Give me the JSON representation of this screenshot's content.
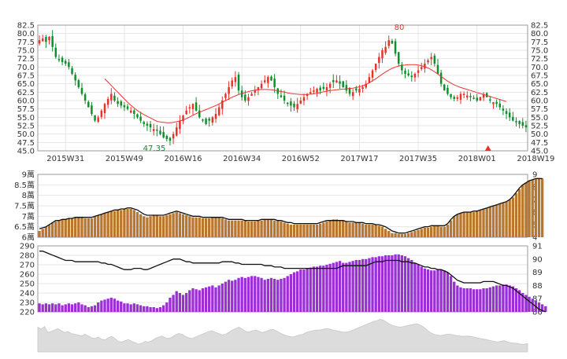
{
  "colors": {
    "up": "#e8322a",
    "down": "#0e8f2c",
    "ma_line": "#ee3333",
    "volume_bar": "#b8772c",
    "volume_line": "#111111",
    "holders_bar": "#9b2fd6",
    "holders_line": "#111111",
    "grid": "#e5e5e5",
    "axis": "#9a9a9a",
    "overview_fill": "#dcdcdc",
    "marker": "#e8322a"
  },
  "chart_data": [
    {
      "type": "candlestick",
      "title": "",
      "x_ticks": [
        "2015W31",
        "2015W49",
        "2016W16",
        "2016W34",
        "2016W52",
        "2017W17",
        "2017W35",
        "2018W01",
        "2018W19"
      ],
      "x_tick_index": [
        8,
        26,
        44,
        62,
        80,
        98,
        116,
        134,
        152
      ],
      "y_ticks": [
        "45.0",
        "47.5",
        "50.0",
        "52.5",
        "55.0",
        "57.5",
        "60.0",
        "62.5",
        "65.0",
        "67.5",
        "70.0",
        "72.5",
        "75.0",
        "77.5",
        "80.0",
        "82.5"
      ],
      "ylim": [
        45,
        82.5
      ],
      "annotations": {
        "high": "80",
        "low": "47.35"
      },
      "close_path": [
        78,
        78.5,
        77.5,
        79,
        76,
        73,
        72,
        71.5,
        71,
        70,
        68,
        66,
        64,
        62,
        60,
        58,
        56,
        54,
        55,
        57,
        59,
        60.5,
        62,
        60,
        59,
        58.5,
        58,
        57.5,
        57,
        56,
        55,
        54,
        53,
        52.5,
        52,
        51.5,
        51,
        50,
        49,
        48.5,
        48,
        50,
        52,
        54,
        55.5,
        57,
        58,
        59,
        57,
        55,
        54,
        53,
        54,
        55,
        56,
        58,
        60,
        62,
        64,
        66,
        67,
        63,
        61,
        60,
        61,
        62,
        63,
        64,
        65,
        66,
        67,
        66,
        64,
        62,
        61,
        60,
        59,
        58.5,
        58,
        59,
        60,
        61,
        62,
        62.5,
        63,
        63.5,
        63,
        63.5,
        64,
        65,
        65.5,
        66,
        65,
        64,
        63,
        62,
        62.5,
        63,
        63.5,
        64,
        65,
        67,
        69,
        71,
        73,
        75,
        76,
        78,
        77,
        74,
        71,
        69,
        68,
        67.5,
        67,
        68,
        69,
        70,
        71,
        72,
        73,
        71,
        68,
        65,
        63,
        62,
        61,
        60.5,
        61,
        62,
        62,
        61.5,
        61,
        60.5,
        60,
        61,
        62,
        61,
        60,
        59.5,
        59,
        58,
        57,
        56,
        55,
        54,
        53.5,
        53,
        52.5,
        52
      ],
      "ma_path": [
        null,
        null,
        null,
        null,
        null,
        null,
        null,
        null,
        null,
        null,
        null,
        null,
        null,
        null,
        null,
        null,
        null,
        null,
        null,
        null,
        66.5,
        65.5,
        64.5,
        63.5,
        62.5,
        61.5,
        60.5,
        59.5,
        58.6,
        57.8,
        57.0,
        56.4,
        55.8,
        55.3,
        54.8,
        54.3,
        53.8,
        53.6,
        53.5,
        53.4,
        53.4,
        53.5,
        53.7,
        53.9,
        54.2,
        54.6,
        55.1,
        55.6,
        56.1,
        56.5,
        56.9,
        57.3,
        57.7,
        58.1,
        58.5,
        59.0,
        59.5,
        60.0,
        60.5,
        61.0,
        61.4,
        61.8,
        62.1,
        62.4,
        62.7,
        62.9,
        63.1,
        63.2,
        63.3,
        63.3,
        63.3,
        63.2,
        63.1,
        62.9,
        62.7,
        62.5,
        62.3,
        62.1,
        62.0,
        61.9,
        61.8,
        61.8,
        61.8,
        61.9,
        62.0,
        62.2,
        62.4,
        62.6,
        62.8,
        63.0,
        63.1,
        63.2,
        63.3,
        63.4,
        63.5,
        63.6,
        63.7,
        63.9,
        64.1,
        64.4,
        64.8,
        65.3,
        65.9,
        66.5,
        67.2,
        67.9,
        68.5,
        69.1,
        69.6,
        70.0,
        70.3,
        70.5,
        70.6,
        70.7,
        70.7,
        70.7,
        70.6,
        70.4,
        70.1,
        69.7,
        69.2,
        68.6,
        67.9,
        67.2,
        66.5,
        65.8,
        65.2,
        64.7,
        64.3,
        63.9,
        63.6,
        63.3,
        63.0,
        62.7,
        62.4,
        62.1,
        61.8,
        61.5,
        61.2,
        60.9,
        60.6,
        60.3,
        60.0,
        59.7
      ]
    },
    {
      "type": "bar",
      "title": "",
      "y_ticks_left": [
        "6萬",
        "6.5萬",
        "7萬",
        "7.5萬",
        "8萬",
        "8.5萬",
        "9萬"
      ],
      "y_ticks_right": [
        "4",
        "5",
        "6",
        "7",
        "8",
        "9"
      ],
      "ylim_left": [
        6,
        9
      ],
      "ylim_right": [
        4,
        9
      ],
      "bar_path": [
        6.3,
        6.4,
        6.5,
        6.6,
        6.7,
        6.75,
        6.8,
        6.85,
        6.85,
        6.9,
        6.9,
        6.95,
        6.95,
        6.95,
        6.9,
        6.9,
        6.9,
        7.0,
        7.05,
        7.1,
        7.15,
        7.2,
        7.25,
        7.25,
        7.3,
        7.3,
        7.35,
        7.35,
        7.35,
        7.3,
        7.2,
        7.1,
        7.0,
        6.95,
        7.0,
        7.05,
        7.05,
        7.0,
        7.0,
        7.05,
        7.1,
        7.15,
        7.2,
        7.15,
        7.1,
        7.05,
        7.0,
        6.95,
        6.95,
        6.95,
        6.9,
        6.9,
        6.9,
        6.95,
        6.95,
        6.95,
        6.9,
        6.85,
        6.8,
        6.8,
        6.8,
        6.8,
        6.8,
        6.8,
        6.75,
        6.75,
        6.75,
        6.8,
        6.8,
        6.85,
        6.85,
        6.85,
        6.8,
        6.8,
        6.75,
        6.7,
        6.65,
        6.6,
        6.6,
        6.6,
        6.6,
        6.6,
        6.6,
        6.6,
        6.6,
        6.6,
        6.65,
        6.7,
        6.75,
        6.8,
        6.85,
        6.85,
        6.8,
        6.8,
        6.75,
        6.7,
        6.7,
        6.7,
        6.7,
        6.65,
        6.6,
        6.6,
        6.6,
        6.6,
        6.55,
        6.5,
        6.4,
        6.3,
        6.2,
        6.2,
        6.15,
        6.15,
        6.15,
        6.2,
        6.25,
        6.3,
        6.35,
        6.4,
        6.45,
        6.45,
        6.5,
        6.55,
        6.55,
        6.5,
        6.5,
        6.6,
        6.8,
        7.0,
        7.1,
        7.15,
        7.2,
        7.2,
        7.2,
        7.2,
        7.25,
        7.3,
        7.35,
        7.4,
        7.45,
        7.5,
        7.55,
        7.6,
        7.65,
        7.7,
        7.8,
        7.9,
        8.1,
        8.3,
        8.5,
        8.6,
        8.7,
        8.75,
        8.8,
        8.8,
        8.8
      ],
      "line_path": [
        6.4,
        6.45,
        6.5,
        6.6,
        6.7,
        6.8,
        6.8,
        6.85,
        6.85,
        6.9,
        6.9,
        6.95,
        6.95,
        6.95,
        6.95,
        6.95,
        6.95,
        7.0,
        7.05,
        7.1,
        7.15,
        7.2,
        7.25,
        7.3,
        7.3,
        7.35,
        7.35,
        7.4,
        7.4,
        7.35,
        7.3,
        7.2,
        7.1,
        7.05,
        7.05,
        7.05,
        7.05,
        7.05,
        7.05,
        7.1,
        7.15,
        7.2,
        7.25,
        7.2,
        7.15,
        7.1,
        7.05,
        7.0,
        7.0,
        7.0,
        6.95,
        6.95,
        6.95,
        6.95,
        6.95,
        6.95,
        6.95,
        6.9,
        6.85,
        6.85,
        6.85,
        6.85,
        6.85,
        6.8,
        6.8,
        6.8,
        6.8,
        6.8,
        6.85,
        6.85,
        6.85,
        6.85,
        6.85,
        6.8,
        6.8,
        6.75,
        6.7,
        6.7,
        6.65,
        6.65,
        6.65,
        6.65,
        6.65,
        6.65,
        6.65,
        6.65,
        6.7,
        6.75,
        6.8,
        6.8,
        6.8,
        6.8,
        6.8,
        6.8,
        6.75,
        6.75,
        6.75,
        6.7,
        6.7,
        6.7,
        6.65,
        6.65,
        6.65,
        6.6,
        6.6,
        6.55,
        6.5,
        6.4,
        6.3,
        6.25,
        6.2,
        6.2,
        6.2,
        6.25,
        6.3,
        6.35,
        6.4,
        6.45,
        6.5,
        6.5,
        6.55,
        6.55,
        6.55,
        6.55,
        6.55,
        6.65,
        6.85,
        7.0,
        7.1,
        7.15,
        7.2,
        7.2,
        7.2,
        7.25,
        7.25,
        7.3,
        7.35,
        7.4,
        7.45,
        7.5,
        7.55,
        7.6,
        7.65,
        7.7,
        7.8,
        7.95,
        8.15,
        8.35,
        8.5,
        8.6,
        8.7,
        8.75,
        8.8,
        8.8,
        8.8
      ]
    },
    {
      "type": "bar",
      "title": "",
      "y_ticks_left": [
        "220",
        "230",
        "240",
        "250",
        "260",
        "270",
        "280",
        "290"
      ],
      "y_ticks_right": [
        "86",
        "87",
        "88",
        "89",
        "90",
        "91"
      ],
      "ylim_left": [
        220,
        290
      ],
      "ylim_right": [
        86,
        91
      ],
      "bar_path": [
        229,
        228,
        229,
        228,
        229,
        228,
        229,
        227,
        228,
        229,
        228,
        229,
        230,
        228,
        227,
        225,
        226,
        227,
        230,
        232,
        233,
        234,
        235,
        234,
        232,
        231,
        229,
        229,
        228,
        229,
        228,
        227,
        226,
        226,
        225,
        225,
        224,
        225,
        227,
        230,
        235,
        238,
        242,
        240,
        238,
        240,
        243,
        245,
        244,
        243,
        245,
        246,
        247,
        248,
        246,
        248,
        250,
        252,
        254,
        253,
        254,
        256,
        257,
        256,
        257,
        258,
        258,
        257,
        256,
        254,
        255,
        256,
        255,
        254,
        255,
        256,
        258,
        260,
        262,
        263,
        265,
        265,
        266,
        267,
        268,
        268,
        269,
        269,
        270,
        271,
        272,
        273,
        274,
        272,
        272,
        273,
        274,
        275,
        275,
        276,
        276,
        277,
        278,
        278,
        279,
        279,
        280,
        280,
        280,
        281,
        281,
        280,
        279,
        277,
        275,
        272,
        270,
        268,
        266,
        265,
        264,
        264,
        265,
        265,
        264,
        262,
        258,
        252,
        248,
        246,
        245,
        245,
        245,
        244,
        244,
        244,
        245,
        245,
        246,
        247,
        248,
        248,
        249,
        249,
        248,
        247,
        245,
        243,
        240,
        238,
        236,
        234,
        232,
        230,
        228,
        226
      ],
      "line_path": [
        90.6,
        90.6,
        90.5,
        90.4,
        90.3,
        90.2,
        90.1,
        90.0,
        89.9,
        89.9,
        89.9,
        89.8,
        89.8,
        89.8,
        89.8,
        89.8,
        89.8,
        89.8,
        89.8,
        89.7,
        89.7,
        89.6,
        89.6,
        89.5,
        89.4,
        89.3,
        89.2,
        89.2,
        89.2,
        89.3,
        89.3,
        89.3,
        89.2,
        89.2,
        89.3,
        89.4,
        89.5,
        89.6,
        89.7,
        89.8,
        89.9,
        90.0,
        90.0,
        90.0,
        89.9,
        89.8,
        89.8,
        89.7,
        89.7,
        89.7,
        89.7,
        89.7,
        89.7,
        89.7,
        89.7,
        89.7,
        89.8,
        89.8,
        89.8,
        89.8,
        89.7,
        89.7,
        89.6,
        89.6,
        89.6,
        89.6,
        89.6,
        89.6,
        89.6,
        89.5,
        89.5,
        89.5,
        89.4,
        89.4,
        89.4,
        89.3,
        89.3,
        89.3,
        89.3,
        89.3,
        89.3,
        89.3,
        89.3,
        89.3,
        89.3,
        89.3,
        89.3,
        89.3,
        89.3,
        89.3,
        89.3,
        89.3,
        89.4,
        89.5,
        89.5,
        89.5,
        89.5,
        89.5,
        89.5,
        89.5,
        89.5,
        89.6,
        89.7,
        89.8,
        89.8,
        89.8,
        89.9,
        89.9,
        89.9,
        89.9,
        89.9,
        89.8,
        89.8,
        89.8,
        89.7,
        89.7,
        89.6,
        89.5,
        89.4,
        89.4,
        89.3,
        89.3,
        89.2,
        89.2,
        89.1,
        89.0,
        88.8,
        88.6,
        88.4,
        88.3,
        88.2,
        88.2,
        88.2,
        88.2,
        88.2,
        88.2,
        88.3,
        88.3,
        88.3,
        88.3,
        88.2,
        88.1,
        88.0,
        88.0,
        87.9,
        87.8,
        87.6,
        87.4,
        87.2,
        87.0,
        86.8,
        86.6,
        86.4,
        86.2,
        86.1,
        86.0
      ]
    },
    {
      "type": "area",
      "title": "",
      "values": [
        0.7,
        0.65,
        0.72,
        0.55,
        0.58,
        0.62,
        0.66,
        0.6,
        0.55,
        0.58,
        0.52,
        0.5,
        0.48,
        0.45,
        0.5,
        0.46,
        0.4,
        0.38,
        0.42,
        0.36,
        0.34,
        0.4,
        0.44,
        0.38,
        0.3,
        0.28,
        0.32,
        0.35,
        0.3,
        0.26,
        0.22,
        0.25,
        0.3,
        0.28,
        0.32,
        0.38,
        0.42,
        0.45,
        0.4,
        0.38,
        0.42,
        0.48,
        0.52,
        0.5,
        0.44,
        0.4,
        0.38,
        0.42,
        0.46,
        0.5,
        0.54,
        0.58,
        0.6,
        0.55,
        0.52,
        0.48,
        0.5,
        0.56,
        0.62,
        0.66,
        0.7,
        0.64,
        0.58,
        0.56,
        0.6,
        0.62,
        0.58,
        0.55,
        0.58,
        0.62,
        0.64,
        0.6,
        0.55,
        0.5,
        0.46,
        0.44,
        0.42,
        0.45,
        0.48,
        0.5,
        0.55,
        0.58,
        0.6,
        0.62,
        0.62,
        0.64,
        0.66,
        0.65,
        0.62,
        0.6,
        0.58,
        0.56,
        0.56,
        0.58,
        0.62,
        0.66,
        0.7,
        0.74,
        0.78,
        0.82,
        0.86,
        0.88,
        0.92,
        0.9,
        0.84,
        0.78,
        0.74,
        0.72,
        0.7,
        0.72,
        0.74,
        0.76,
        0.78,
        0.8,
        0.76,
        0.7,
        0.62,
        0.55,
        0.5,
        0.48,
        0.46,
        0.48,
        0.5,
        0.5,
        0.48,
        0.46,
        0.45,
        0.44,
        0.45,
        0.44,
        0.42,
        0.4,
        0.38,
        0.36,
        0.34,
        0.32,
        0.3,
        0.28,
        0.3,
        0.32,
        0.28,
        0.26,
        0.25,
        0.24,
        0.22,
        0.22,
        0.24
      ]
    }
  ]
}
